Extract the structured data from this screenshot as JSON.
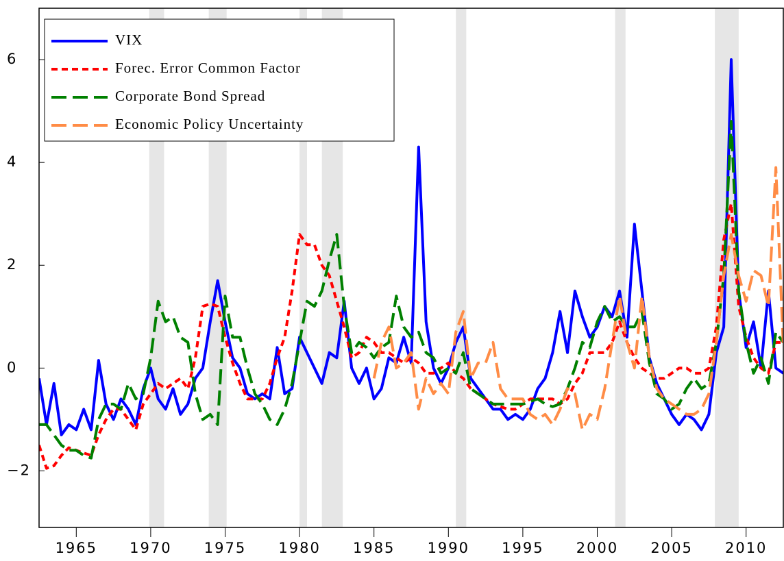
{
  "chart_data": {
    "type": "line",
    "x": [
      1962.5,
      1963,
      1963.5,
      1964,
      1964.5,
      1965,
      1965.5,
      1966,
      1966.5,
      1967,
      1967.5,
      1968,
      1968.5,
      1969,
      1969.5,
      1970,
      1970.5,
      1971,
      1971.5,
      1972,
      1972.5,
      1973,
      1973.5,
      1974,
      1974.5,
      1975,
      1975.5,
      1976,
      1976.5,
      1977,
      1977.5,
      1978,
      1978.5,
      1979,
      1979.5,
      1980,
      1980.5,
      1981,
      1981.5,
      1982,
      1982.5,
      1983,
      1983.5,
      1984,
      1984.5,
      1985,
      1985.5,
      1986,
      1986.5,
      1987,
      1987.5,
      1988,
      1988.5,
      1989,
      1989.5,
      1990,
      1990.5,
      1991,
      1991.5,
      1992,
      1992.5,
      1993,
      1993.5,
      1994,
      1994.5,
      1995,
      1995.5,
      1996,
      1996.5,
      1997,
      1997.5,
      1998,
      1998.5,
      1999,
      1999.5,
      2000,
      2000.5,
      2001,
      2001.5,
      2002,
      2002.5,
      2003,
      2003.5,
      2004,
      2004.5,
      2005,
      2005.5,
      2006,
      2006.5,
      2007,
      2007.5,
      2008,
      2008.5,
      2009,
      2009.5,
      2010,
      2010.5,
      2011,
      2011.5,
      2012,
      2012.5
    ],
    "series": [
      {
        "name": "VIX",
        "color": "#0000ff",
        "dash": "solid",
        "values": [
          -0.2,
          -1.1,
          -0.3,
          -1.3,
          -1.1,
          -1.2,
          -0.8,
          -1.2,
          0.15,
          -0.7,
          -1.0,
          -0.6,
          -0.8,
          -1.1,
          -0.4,
          0.0,
          -0.6,
          -0.8,
          -0.4,
          -0.9,
          -0.7,
          -0.2,
          0.0,
          0.9,
          1.7,
          0.9,
          0.2,
          0.0,
          -0.5,
          -0.6,
          -0.5,
          -0.6,
          0.4,
          -0.5,
          -0.4,
          0.6,
          0.3,
          0.0,
          -0.3,
          0.3,
          0.2,
          1.3,
          0.0,
          -0.3,
          0.0,
          -0.6,
          -0.4,
          0.2,
          0.1,
          0.6,
          0.1,
          4.3,
          0.9,
          0.0,
          -0.3,
          0.0,
          0.5,
          0.8,
          -0.2,
          -0.4,
          -0.6,
          -0.8,
          -0.8,
          -1.0,
          -0.9,
          -1.0,
          -0.8,
          -0.4,
          -0.2,
          0.3,
          1.1,
          0.3,
          1.5,
          1.0,
          0.6,
          0.8,
          1.2,
          1.0,
          1.5,
          0.6,
          2.8,
          1.5,
          0.2,
          -0.3,
          -0.6,
          -0.9,
          -1.1,
          -0.9,
          -1.0,
          -1.2,
          -0.9,
          0.3,
          0.8,
          6.0,
          1.5,
          0.4,
          0.9,
          0.0,
          1.5,
          0.0,
          -0.1
        ]
      },
      {
        "name": "Forec. Error Common Factor",
        "color": "#ff0000",
        "dash": "short",
        "values": [
          -1.5,
          -1.95,
          -1.9,
          -1.7,
          -1.55,
          -1.6,
          -1.65,
          -1.7,
          -1.3,
          -1.0,
          -0.8,
          -0.8,
          -1.0,
          -1.2,
          -0.7,
          -0.5,
          -0.3,
          -0.4,
          -0.3,
          -0.2,
          -0.4,
          0.2,
          1.2,
          1.25,
          1.2,
          0.6,
          0.1,
          -0.3,
          -0.6,
          -0.6,
          -0.6,
          -0.3,
          0.2,
          0.6,
          1.5,
          2.6,
          2.4,
          2.4,
          2.0,
          1.8,
          1.3,
          0.8,
          0.2,
          0.3,
          0.6,
          0.5,
          0.3,
          0.3,
          0.2,
          0.1,
          0.2,
          0.1,
          -0.1,
          -0.1,
          0.0,
          0.1,
          -0.1,
          -0.2,
          -0.4,
          -0.5,
          -0.6,
          -0.7,
          -0.75,
          -0.8,
          -0.8,
          -0.7,
          -0.6,
          -0.6,
          -0.6,
          -0.6,
          -0.7,
          -0.6,
          -0.3,
          -0.1,
          0.3,
          0.3,
          0.3,
          0.5,
          0.9,
          0.5,
          0.2,
          0.0,
          -0.1,
          -0.2,
          -0.2,
          -0.1,
          0.0,
          0.0,
          -0.1,
          -0.1,
          0.0,
          0.8,
          2.5,
          3.2,
          1.2,
          0.6,
          0.2,
          0.0,
          -0.1,
          0.5,
          0.5
        ]
      },
      {
        "name": "Corporate Bond Spread",
        "color": "#008000",
        "dash": "long",
        "values": [
          -1.1,
          -1.1,
          -1.3,
          -1.5,
          -1.6,
          -1.6,
          -1.7,
          -1.75,
          -1.0,
          -0.7,
          -0.7,
          -0.8,
          -0.3,
          -0.6,
          -0.5,
          0.2,
          1.3,
          0.9,
          1.0,
          0.6,
          0.5,
          -0.5,
          -1.0,
          -0.9,
          -1.1,
          1.4,
          0.6,
          0.6,
          0.0,
          -0.5,
          -0.7,
          -1.0,
          -1.1,
          -0.8,
          -0.3,
          0.5,
          1.3,
          1.2,
          1.5,
          2.1,
          2.6,
          1.2,
          0.3,
          0.5,
          0.4,
          0.2,
          0.4,
          0.5,
          1.4,
          0.8,
          0.6,
          0.7,
          0.3,
          0.2,
          -0.1,
          0.0,
          -0.1,
          0.3,
          -0.4,
          -0.5,
          -0.6,
          -0.7,
          -0.7,
          -0.7,
          -0.7,
          -0.7,
          -0.65,
          -0.6,
          -0.7,
          -0.75,
          -0.7,
          -0.4,
          0.0,
          0.5,
          0.4,
          0.9,
          1.2,
          0.9,
          1.0,
          0.8,
          0.8,
          1.1,
          0.1,
          -0.5,
          -0.6,
          -0.8,
          -0.7,
          -0.4,
          -0.2,
          -0.4,
          -0.3,
          0.5,
          1.8,
          4.8,
          1.5,
          0.5,
          -0.1,
          0.2,
          -0.3,
          0.7,
          0.5
        ]
      },
      {
        "name": "Economic Policy Uncertainty",
        "color": "#ff8c46",
        "dash": "long",
        "values": [
          null,
          null,
          null,
          null,
          null,
          null,
          null,
          null,
          null,
          null,
          null,
          null,
          null,
          null,
          null,
          null,
          null,
          null,
          null,
          null,
          null,
          null,
          null,
          null,
          null,
          null,
          null,
          null,
          null,
          null,
          null,
          null,
          null,
          null,
          null,
          null,
          null,
          null,
          null,
          null,
          null,
          null,
          null,
          null,
          null,
          -0.2,
          0.5,
          0.8,
          0.0,
          0.1,
          0.3,
          -0.8,
          -0.2,
          -0.5,
          -0.3,
          -0.5,
          0.7,
          1.1,
          -0.2,
          0.1,
          0.1,
          0.5,
          -0.4,
          -0.6,
          -0.6,
          -0.6,
          -0.9,
          -1.0,
          -0.9,
          -1.1,
          -0.8,
          -0.4,
          -0.5,
          -1.2,
          -0.9,
          -1.0,
          -0.4,
          0.5,
          1.4,
          0.5,
          0.0,
          1.4,
          0.2,
          -0.4,
          -0.6,
          -0.7,
          -0.8,
          -0.9,
          -0.9,
          -0.8,
          -0.5,
          0.5,
          1.8,
          2.6,
          1.8,
          1.3,
          1.9,
          1.8,
          1.2,
          3.9,
          0.4
        ]
      }
    ],
    "recessions": [
      [
        1969.9,
        1970.9
      ],
      [
        1973.9,
        1975.1
      ],
      [
        1980.0,
        1980.5
      ],
      [
        1981.5,
        1982.9
      ],
      [
        1990.5,
        1991.2
      ],
      [
        2001.2,
        2001.9
      ],
      [
        2007.9,
        2009.5
      ]
    ],
    "xlim": [
      1962.5,
      2012.5
    ],
    "ylim": [
      -3.1,
      7
    ],
    "xticks": [
      1965,
      1970,
      1975,
      1980,
      1985,
      1990,
      1995,
      2000,
      2005,
      2010
    ],
    "yticks": [
      {
        "value": -2,
        "label": "−2"
      },
      0,
      2,
      4,
      6
    ],
    "legend": "top-left"
  }
}
